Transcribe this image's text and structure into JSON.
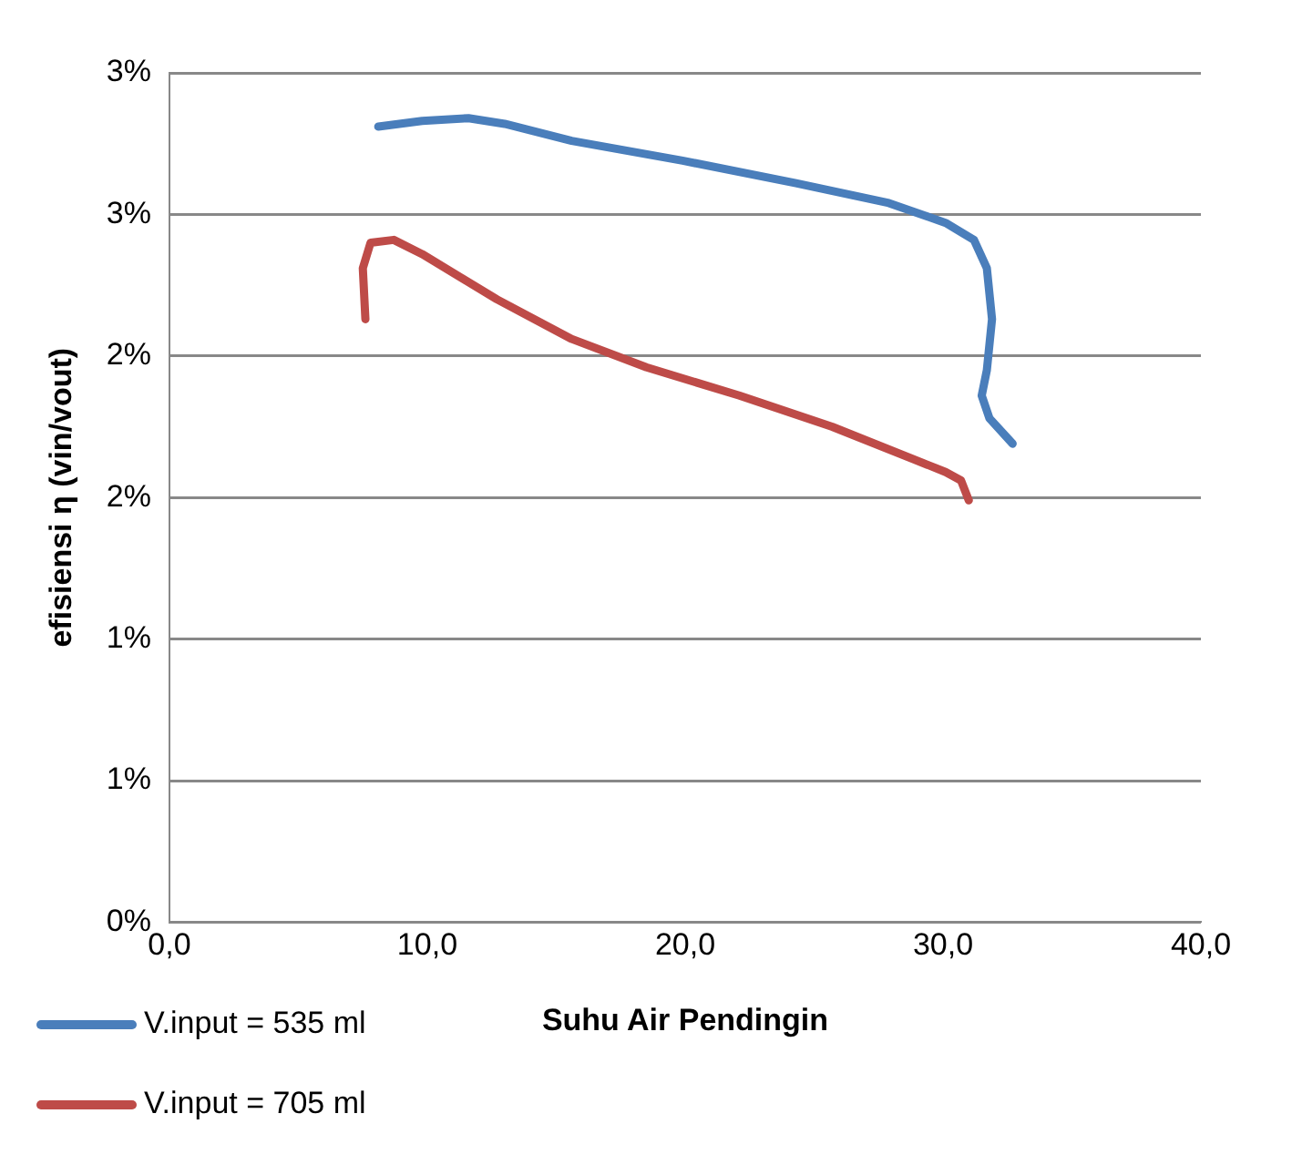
{
  "chart_data": {
    "type": "line",
    "xlabel": "Suhu Air Pendingin",
    "ylabel": "efisiensi η (vin/vout)",
    "xlim": [
      0,
      40
    ],
    "xticks": [
      {
        "value": 0,
        "label": "0,0"
      },
      {
        "value": 10,
        "label": "10,0"
      },
      {
        "value": 20,
        "label": "20,0"
      },
      {
        "value": 30,
        "label": "30,0"
      },
      {
        "value": 40,
        "label": "40,0"
      }
    ],
    "ylim": [
      0,
      3
    ],
    "yticks": [
      {
        "value": 0,
        "label": "0%"
      },
      {
        "value": 0.5,
        "label": "1%"
      },
      {
        "value": 1,
        "label": "1%"
      },
      {
        "value": 1.5,
        "label": "2%"
      },
      {
        "value": 2,
        "label": "2%"
      },
      {
        "value": 2.5,
        "label": "3%"
      },
      {
        "value": 3,
        "label": "3%"
      }
    ],
    "grid": "y",
    "legend": "bottom left",
    "marker": "none",
    "line_style": "solid",
    "series": [
      {
        "name": "V.input = 535 ml",
        "color": "#4a7ebb",
        "x": [
          8.1,
          9.8,
          11.6,
          13.0,
          15.6,
          19.9,
          24.3,
          27.9,
          30.1,
          31.2,
          31.7,
          31.9,
          31.7,
          31.5,
          31.8,
          32.7
        ],
        "values": [
          2.81,
          2.83,
          2.84,
          2.82,
          2.76,
          2.69,
          2.61,
          2.54,
          2.47,
          2.41,
          2.31,
          2.13,
          1.95,
          1.86,
          1.78,
          1.69
        ]
      },
      {
        "name": "V.input = 705 ml",
        "color": "#be4b48",
        "x": [
          7.6,
          7.5,
          7.8,
          8.7,
          9.8,
          12.7,
          15.6,
          18.5,
          22.1,
          25.7,
          30.1,
          30.7,
          31.0
        ],
        "values": [
          2.13,
          2.31,
          2.4,
          2.41,
          2.36,
          2.2,
          2.06,
          1.96,
          1.86,
          1.75,
          1.59,
          1.56,
          1.49
        ]
      }
    ]
  }
}
